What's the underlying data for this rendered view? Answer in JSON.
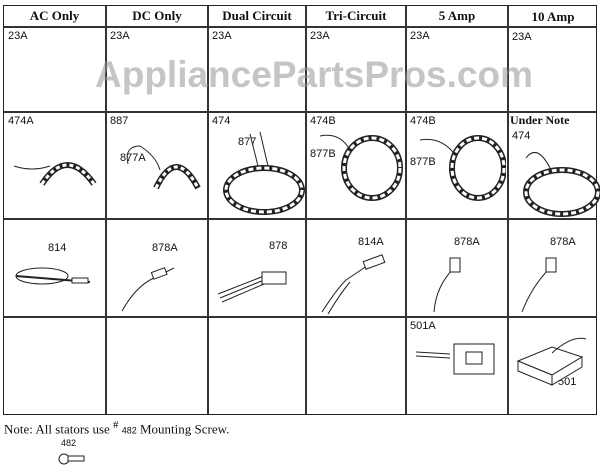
{
  "watermark": "AppliancePartsPros.com",
  "columns": [
    "AC Only",
    "DC Only",
    "Dual Circuit",
    "Tri-Circuit",
    "5 Amp",
    "10 Amp"
  ],
  "row1": [
    "23A",
    "23A",
    "23A",
    "23A",
    "23A",
    "23A"
  ],
  "row2": {
    "ac": [
      "474A"
    ],
    "dc": [
      "887",
      "877A"
    ],
    "dual": [
      "474",
      "877"
    ],
    "tri": [
      "474B",
      "877B"
    ],
    "amp5": [
      "474B",
      "877B"
    ],
    "amp10": [
      "Under Note",
      "474"
    ]
  },
  "row3": [
    "814",
    "878A",
    "878",
    "814A",
    "878A",
    "878A"
  ],
  "row4": {
    "amp5": "501A",
    "amp10": "501"
  },
  "note": {
    "prefix": "Note: All stators use",
    "hash": "#",
    "part": "482",
    "suffix": "Mounting Screw."
  },
  "screw_label": "482"
}
